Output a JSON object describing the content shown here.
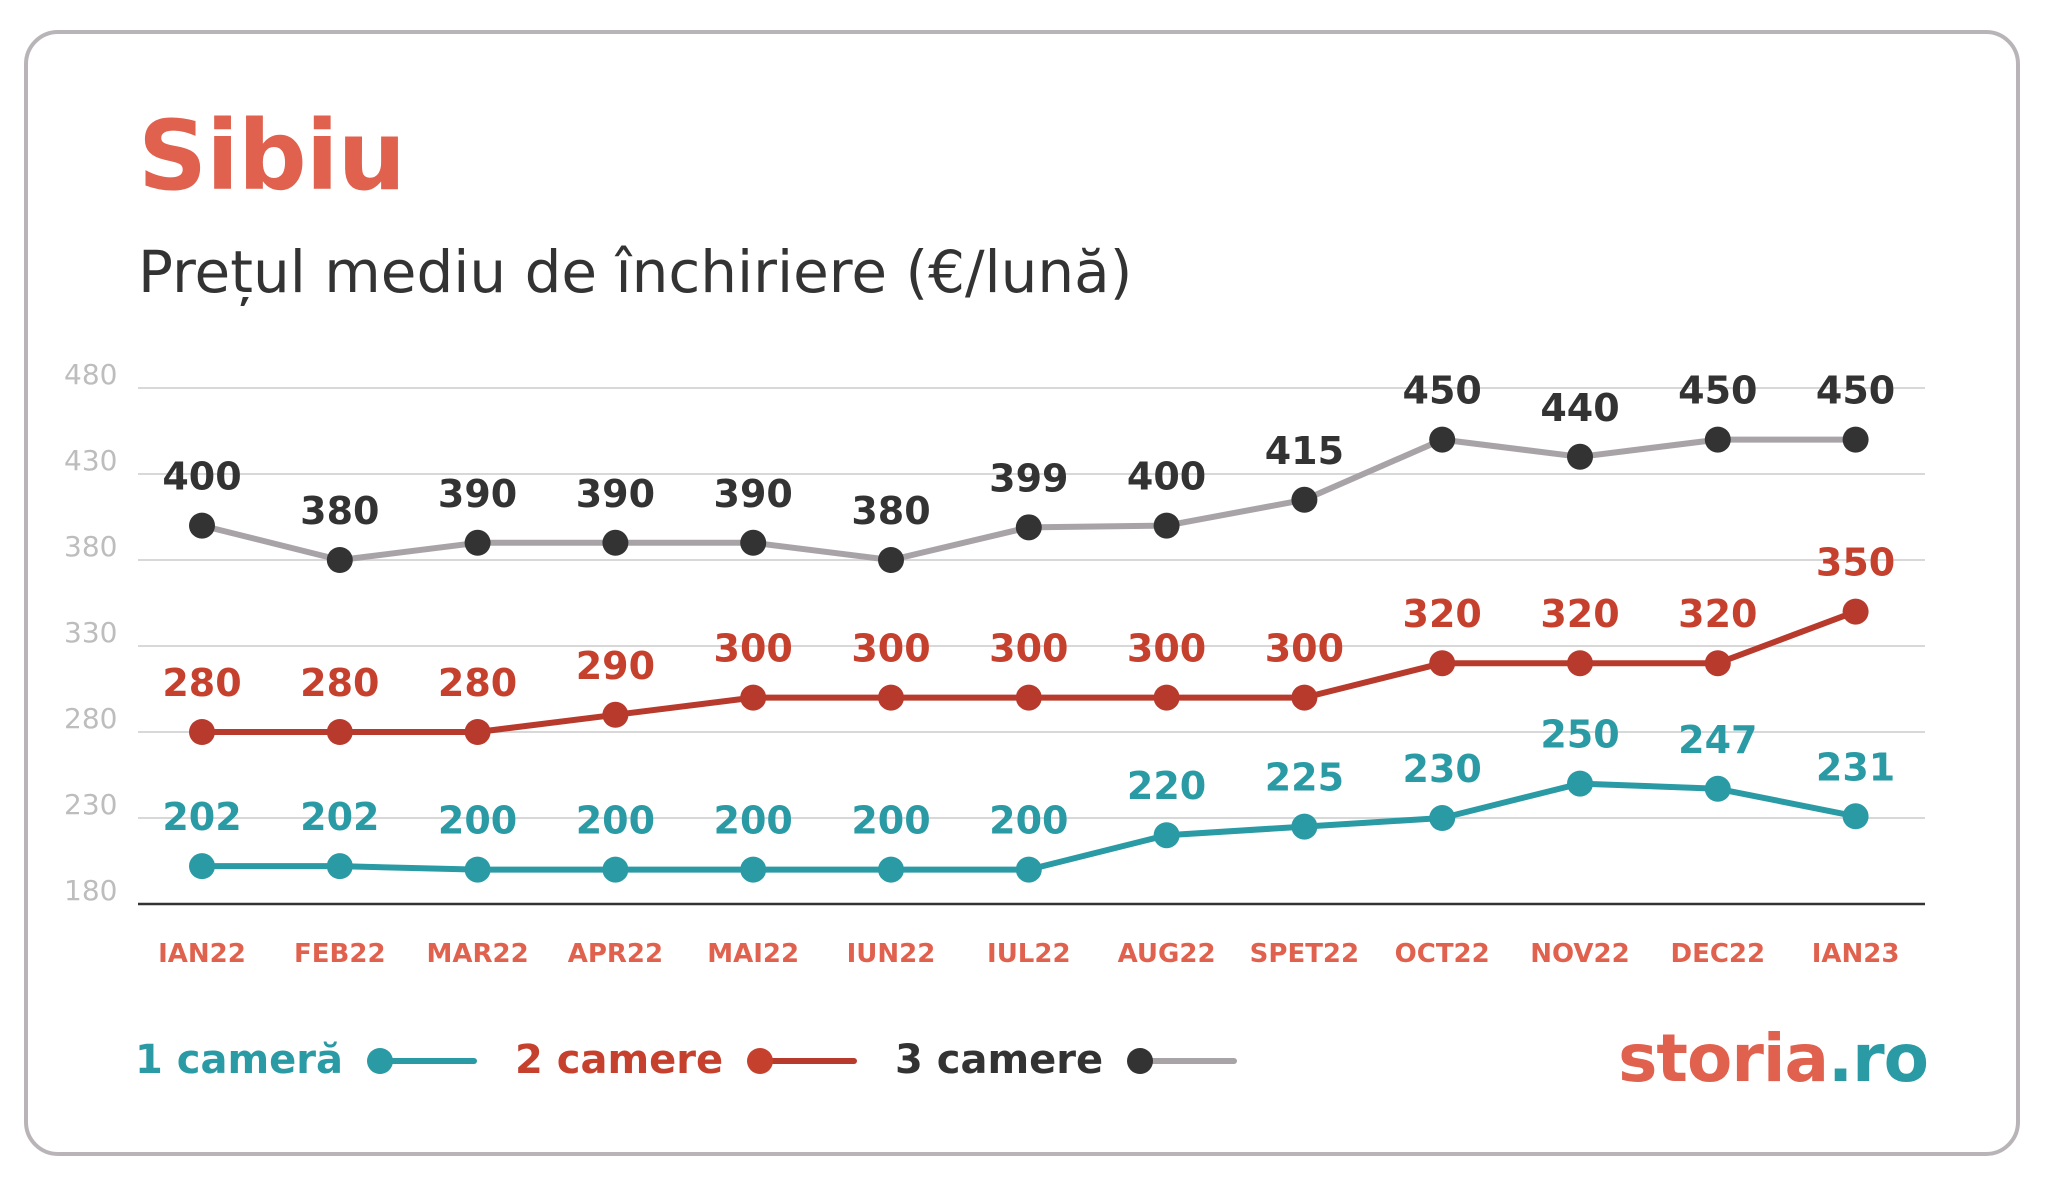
{
  "header": {
    "title": "Sibiu",
    "subtitle": "Prețul mediu de închiriere (€/lună)"
  },
  "chart_data": {
    "type": "line",
    "title": "Sibiu",
    "subtitle": "Prețul mediu de închiriere (€/lună)",
    "categories": [
      "IAN22",
      "FEB22",
      "MAR22",
      "APR22",
      "MAI22",
      "IUN22",
      "IUL22",
      "AUG22",
      "SPET22",
      "OCT22",
      "NOV22",
      "DEC22",
      "IAN23"
    ],
    "yticks": [
      180,
      230,
      280,
      330,
      380,
      430,
      480
    ],
    "ylim": [
      180,
      480
    ],
    "grid": true,
    "legend_position": "bottom-left",
    "series": [
      {
        "name": "1 cameră",
        "color": "#2a9aa4",
        "values": [
          202,
          202,
          200,
          200,
          200,
          200,
          200,
          220,
          225,
          230,
          250,
          247,
          231
        ]
      },
      {
        "name": "2 camere",
        "color": "#b83a2c",
        "values": [
          280,
          280,
          280,
          290,
          300,
          300,
          300,
          300,
          300,
          320,
          320,
          320,
          350
        ]
      },
      {
        "name": "3 camere",
        "color": "#333333",
        "line_color": "#a8a3a7",
        "values": [
          400,
          380,
          390,
          390,
          390,
          380,
          399,
          400,
          415,
          450,
          440,
          450,
          450
        ]
      }
    ]
  },
  "colors": {
    "title": "#e0614e",
    "xtick": "#e0614e",
    "ytick": "#bdbdbd",
    "grid": "#d8d8d8",
    "axis": "#333333",
    "label_1": "#2a9aa4",
    "label_2": "#c6402e",
    "label_3": "#333333"
  },
  "logo": {
    "text_a": "storia",
    "text_b": ".ro",
    "icon": "storia-logo"
  }
}
